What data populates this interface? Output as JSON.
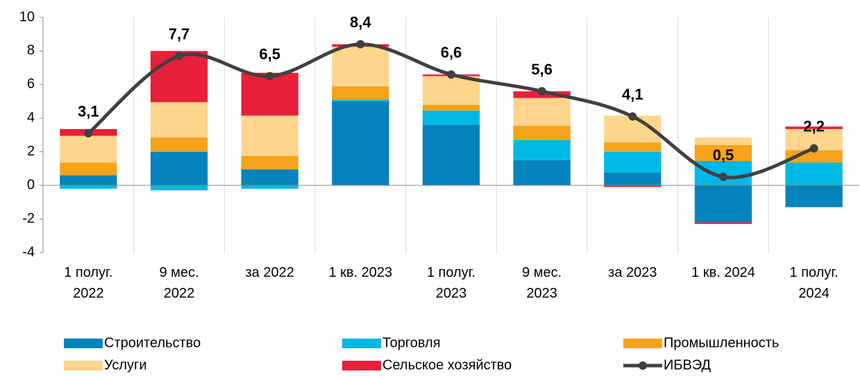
{
  "chart_data": {
    "type": "stacked_bar_line",
    "categories": [
      "1 полуг.\n2022",
      "9 мес.\n2022",
      "за 2022",
      "1 кв. 2023",
      "1 полуг.\n2023",
      "9 мес.\n2023",
      "за 2023",
      "1 кв. 2024",
      "1 полуг.\n2024"
    ],
    "series": [
      {
        "name": "Строительство",
        "color": "#0583bd",
        "values": [
          0.6,
          2.0,
          0.95,
          5.0,
          3.6,
          1.5,
          0.75,
          -2.2,
          -1.3
        ]
      },
      {
        "name": "Торговля",
        "color": "#00b8e6",
        "values": [
          -0.2,
          -0.3,
          -0.2,
          0.1,
          0.85,
          1.2,
          1.25,
          1.45,
          1.35
        ]
      },
      {
        "name": "Промышленность",
        "color": "#f5a31c",
        "values": [
          0.75,
          0.85,
          0.8,
          0.8,
          0.35,
          0.85,
          0.55,
          0.95,
          0.75
        ]
      },
      {
        "name": "Услуги",
        "color": "#fdd58c",
        "values": [
          1.6,
          2.1,
          2.4,
          2.35,
          1.7,
          1.65,
          1.6,
          0.45,
          1.25
        ]
      },
      {
        "name": "Сельское хозяйство",
        "color": "#e8203a",
        "values": [
          0.4,
          3.05,
          2.55,
          0.15,
          0.1,
          0.4,
          -0.1,
          -0.1,
          0.15
        ]
      },
      {
        "name": "ИБВЭД",
        "color": "#404040",
        "type": "line",
        "values": [
          3.1,
          7.7,
          6.5,
          8.4,
          6.6,
          5.6,
          4.1,
          0.5,
          2.2
        ],
        "value_labels": [
          "3,1",
          "7,7",
          "6,5",
          "8,4",
          "6,6",
          "5,6",
          "4,1",
          "0,5",
          "2,2"
        ]
      }
    ],
    "ylim": [
      -4,
      10
    ],
    "yticks": [
      -4,
      -2,
      0,
      2,
      4,
      6,
      8,
      10
    ],
    "grid": true
  }
}
